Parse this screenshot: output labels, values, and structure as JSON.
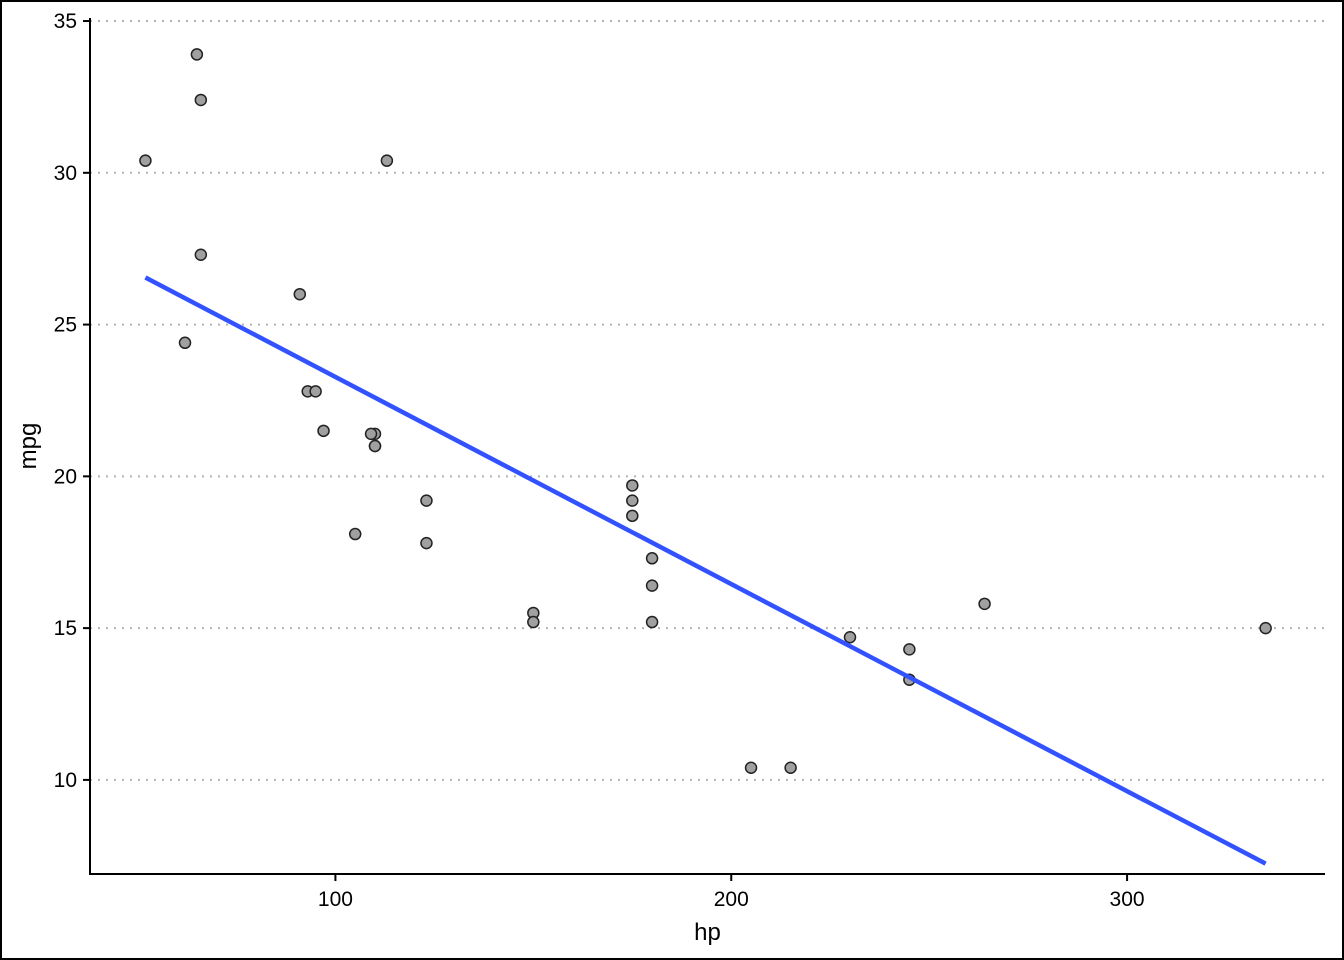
{
  "chart_data": {
    "type": "scatter",
    "xlabel": "hp",
    "ylabel": "mpg",
    "xlim": [
      38,
      350
    ],
    "ylim": [
      6.9,
      35.1
    ],
    "x_ticks": [
      100,
      200,
      300
    ],
    "y_ticks": [
      10,
      15,
      20,
      25,
      30,
      35
    ],
    "grid": "horizontal dotted",
    "series": [
      {
        "kind": "points",
        "points": [
          {
            "x": 110,
            "y": 21.0
          },
          {
            "x": 110,
            "y": 21.0
          },
          {
            "x": 93,
            "y": 22.8
          },
          {
            "x": 110,
            "y": 21.4
          },
          {
            "x": 175,
            "y": 18.7
          },
          {
            "x": 105,
            "y": 18.1
          },
          {
            "x": 245,
            "y": 14.3
          },
          {
            "x": 62,
            "y": 24.4
          },
          {
            "x": 95,
            "y": 22.8
          },
          {
            "x": 123,
            "y": 19.2
          },
          {
            "x": 123,
            "y": 17.8
          },
          {
            "x": 180,
            "y": 16.4
          },
          {
            "x": 180,
            "y": 17.3
          },
          {
            "x": 180,
            "y": 15.2
          },
          {
            "x": 205,
            "y": 10.4
          },
          {
            "x": 215,
            "y": 10.4
          },
          {
            "x": 230,
            "y": 14.7
          },
          {
            "x": 66,
            "y": 32.4
          },
          {
            "x": 52,
            "y": 30.4
          },
          {
            "x": 65,
            "y": 33.9
          },
          {
            "x": 97,
            "y": 21.5
          },
          {
            "x": 150,
            "y": 15.5
          },
          {
            "x": 150,
            "y": 15.2
          },
          {
            "x": 245,
            "y": 13.3
          },
          {
            "x": 175,
            "y": 19.2
          },
          {
            "x": 66,
            "y": 27.3
          },
          {
            "x": 91,
            "y": 26.0
          },
          {
            "x": 113,
            "y": 30.4
          },
          {
            "x": 264,
            "y": 15.8
          },
          {
            "x": 175,
            "y": 19.7
          },
          {
            "x": 335,
            "y": 15.0
          },
          {
            "x": 109,
            "y": 21.4
          }
        ]
      },
      {
        "kind": "fit-line",
        "x": [
          52,
          335
        ],
        "y": [
          26.55,
          7.24
        ]
      }
    ]
  },
  "colors": {
    "point_fill": "#a0a0a0",
    "point_stroke": "#222222",
    "fit_line": "#3352ff",
    "grid": "#b3b3b3",
    "axis": "#000000"
  }
}
